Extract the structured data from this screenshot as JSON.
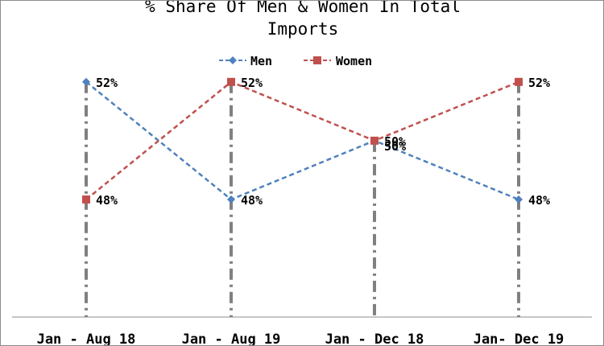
{
  "chart_data": {
    "type": "line",
    "title_lines": [
      "% Share Of Men & Women In Total",
      "Imports"
    ],
    "categories": [
      "Jan - Aug 18",
      "Jan - Aug 19",
      "Jan - Dec 18",
      "Jan- Dec 19"
    ],
    "series": [
      {
        "name": "Men",
        "values": [
          52,
          48,
          50,
          48
        ],
        "labels": [
          "52%",
          "48%",
          "50%",
          "48%"
        ],
        "color": "#4f81bd",
        "marker": "diamond"
      },
      {
        "name": "Women",
        "values": [
          48,
          52,
          50,
          52
        ],
        "labels": [
          "48%",
          "52%",
          "50%",
          "52%"
        ],
        "color": "#c0504d",
        "marker": "square"
      }
    ],
    "ylim": [
      44,
      53.5
    ],
    "legend_position": "top-center",
    "drop_lines": true,
    "drop_line_color": "#808080",
    "line_style": "dashed"
  }
}
